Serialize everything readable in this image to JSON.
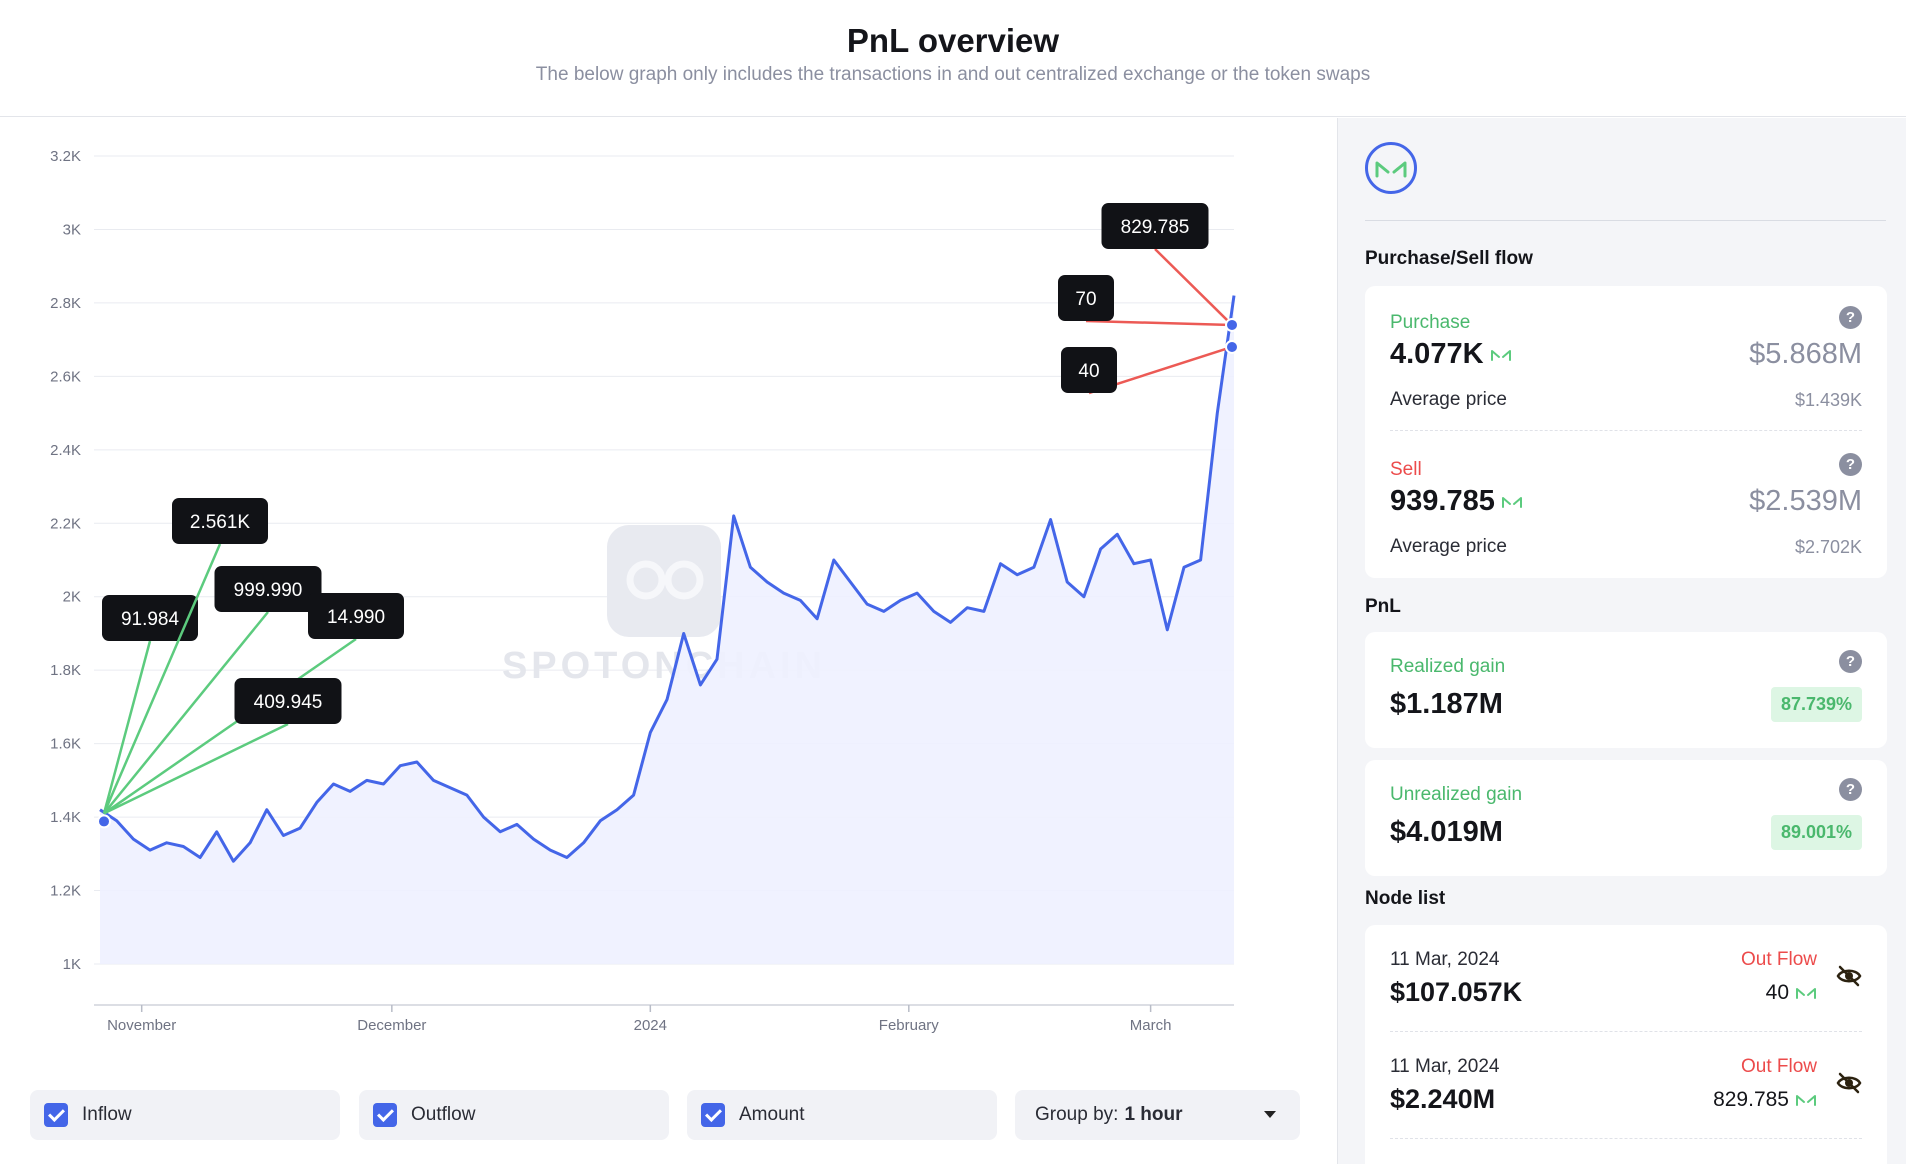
{
  "header": {
    "title": "PnL overview",
    "subtitle": "The below graph only includes the transactions in and out centralized exchange or the token swaps"
  },
  "chart_data": {
    "type": "area",
    "title": "",
    "xlabel": "",
    "ylabel": "",
    "ylim": [
      1000,
      3200
    ],
    "yticks": [
      "1K",
      "1.2K",
      "1.4K",
      "1.6K",
      "1.8K",
      "2K",
      "2.2K",
      "2.4K",
      "2.6K",
      "2.8K",
      "3K",
      "3.2K"
    ],
    "xticks": [
      "November",
      "December",
      "2024",
      "February",
      "March"
    ],
    "series": [
      {
        "values": [
          {
            "x": "2023-10-27",
            "y": 1420
          },
          {
            "x": "2023-10-29",
            "y": 1390
          },
          {
            "x": "2023-10-31",
            "y": 1340
          },
          {
            "x": "2023-11-02",
            "y": 1310
          },
          {
            "x": "2023-11-04",
            "y": 1330
          },
          {
            "x": "2023-11-06",
            "y": 1320
          },
          {
            "x": "2023-11-08",
            "y": 1290
          },
          {
            "x": "2023-11-10",
            "y": 1360
          },
          {
            "x": "2023-11-12",
            "y": 1280
          },
          {
            "x": "2023-11-14",
            "y": 1330
          },
          {
            "x": "2023-11-16",
            "y": 1420
          },
          {
            "x": "2023-11-18",
            "y": 1350
          },
          {
            "x": "2023-11-20",
            "y": 1370
          },
          {
            "x": "2023-11-22",
            "y": 1440
          },
          {
            "x": "2023-11-24",
            "y": 1490
          },
          {
            "x": "2023-11-26",
            "y": 1470
          },
          {
            "x": "2023-11-28",
            "y": 1500
          },
          {
            "x": "2023-11-30",
            "y": 1490
          },
          {
            "x": "2023-12-02",
            "y": 1540
          },
          {
            "x": "2023-12-04",
            "y": 1550
          },
          {
            "x": "2023-12-06",
            "y": 1500
          },
          {
            "x": "2023-12-08",
            "y": 1480
          },
          {
            "x": "2023-12-10",
            "y": 1460
          },
          {
            "x": "2023-12-12",
            "y": 1400
          },
          {
            "x": "2023-12-14",
            "y": 1360
          },
          {
            "x": "2023-12-16",
            "y": 1380
          },
          {
            "x": "2023-12-18",
            "y": 1340
          },
          {
            "x": "2023-12-20",
            "y": 1310
          },
          {
            "x": "2023-12-22",
            "y": 1290
          },
          {
            "x": "2023-12-24",
            "y": 1330
          },
          {
            "x": "2023-12-26",
            "y": 1390
          },
          {
            "x": "2023-12-28",
            "y": 1420
          },
          {
            "x": "2023-12-30",
            "y": 1460
          },
          {
            "x": "2024-01-01",
            "y": 1630
          },
          {
            "x": "2024-01-03",
            "y": 1720
          },
          {
            "x": "2024-01-05",
            "y": 1900
          },
          {
            "x": "2024-01-07",
            "y": 1760
          },
          {
            "x": "2024-01-09",
            "y": 1830
          },
          {
            "x": "2024-01-11",
            "y": 2220
          },
          {
            "x": "2024-01-13",
            "y": 2080
          },
          {
            "x": "2024-01-15",
            "y": 2040
          },
          {
            "x": "2024-01-17",
            "y": 2010
          },
          {
            "x": "2024-01-19",
            "y": 1990
          },
          {
            "x": "2024-01-21",
            "y": 1940
          },
          {
            "x": "2024-01-23",
            "y": 2100
          },
          {
            "x": "2024-01-25",
            "y": 2040
          },
          {
            "x": "2024-01-27",
            "y": 1980
          },
          {
            "x": "2024-01-29",
            "y": 1960
          },
          {
            "x": "2024-01-31",
            "y": 1990
          },
          {
            "x": "2024-02-02",
            "y": 2010
          },
          {
            "x": "2024-02-04",
            "y": 1960
          },
          {
            "x": "2024-02-06",
            "y": 1930
          },
          {
            "x": "2024-02-08",
            "y": 1970
          },
          {
            "x": "2024-02-10",
            "y": 1960
          },
          {
            "x": "2024-02-12",
            "y": 2090
          },
          {
            "x": "2024-02-14",
            "y": 2060
          },
          {
            "x": "2024-02-16",
            "y": 2080
          },
          {
            "x": "2024-02-18",
            "y": 2210
          },
          {
            "x": "2024-02-20",
            "y": 2040
          },
          {
            "x": "2024-02-22",
            "y": 2000
          },
          {
            "x": "2024-02-24",
            "y": 2130
          },
          {
            "x": "2024-02-26",
            "y": 2170
          },
          {
            "x": "2024-02-28",
            "y": 2090
          },
          {
            "x": "2024-03-01",
            "y": 2100
          },
          {
            "x": "2024-03-03",
            "y": 1910
          },
          {
            "x": "2024-03-05",
            "y": 2080
          },
          {
            "x": "2024-03-07",
            "y": 2100
          },
          {
            "x": "2024-03-09",
            "y": 2500
          },
          {
            "x": "2024-03-11",
            "y": 2820
          }
        ]
      }
    ],
    "inflow_labels": [
      "91.984",
      "2.561K",
      "999.990",
      "14.990",
      "409.945"
    ],
    "outflow_labels": [
      "829.785",
      "70",
      "40"
    ],
    "colors": {
      "line": "#4466e8",
      "area": "#eef1ff",
      "inflow": "#5ccb7e",
      "outflow": "#ec5a55"
    }
  },
  "watermark": "SPOTONCHAIN",
  "controls": {
    "inflow": "Inflow",
    "outflow": "Outflow",
    "amount": "Amount",
    "group_label": "Group by:",
    "group_value": "1 hour"
  },
  "sidebar": {
    "flow_title": "Purchase/Sell flow",
    "purchase": {
      "label": "Purchase",
      "amount": "4.077K",
      "usd": "$5.868M",
      "avg_label": "Average price",
      "avg": "$1.439K"
    },
    "sell": {
      "label": "Sell",
      "amount": "939.785",
      "usd": "$2.539M",
      "avg_label": "Average price",
      "avg": "$2.702K"
    },
    "pnl_title": "PnL",
    "realized": {
      "label": "Realized gain",
      "value": "$1.187M",
      "pct": "87.739%"
    },
    "unrealized": {
      "label": "Unrealized gain",
      "value": "$4.019M",
      "pct": "89.001%"
    },
    "node_title": "Node list",
    "nodes": [
      {
        "date": "11 Mar, 2024",
        "type": "Out Flow",
        "usd": "$107.057K",
        "amount": "40"
      },
      {
        "date": "11 Mar, 2024",
        "type": "Out Flow",
        "usd": "$2.240M",
        "amount": "829.785"
      }
    ],
    "help": "?"
  },
  "icons": {
    "token": "mkr-token-icon",
    "eye": "eye-slash-icon",
    "logo": "maker-logo-icon"
  }
}
